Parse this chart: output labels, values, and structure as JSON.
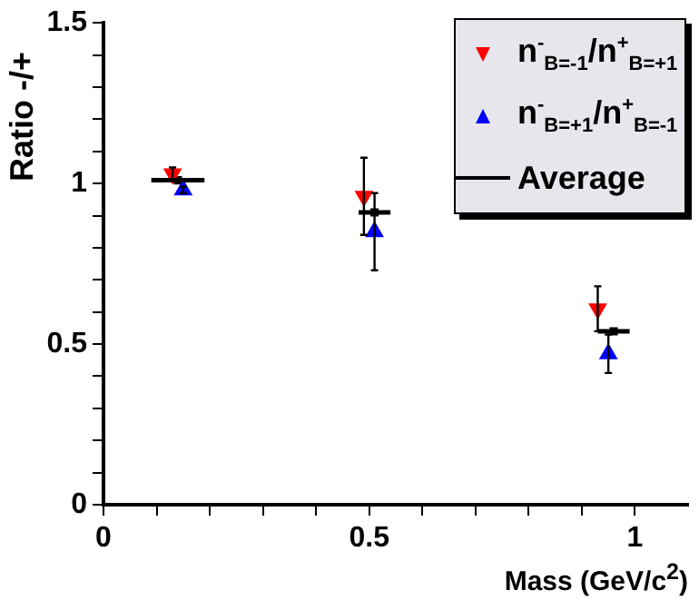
{
  "chart_data": {
    "type": "scatter",
    "xlabel": "Mass (GeV/c$^{2}$)",
    "ylabel": "Ratio -/+",
    "xlim": [
      0,
      1.1
    ],
    "ylim": [
      0,
      1.5
    ],
    "xticks": [
      0,
      {
        "value": 0.1,
        "label": null
      },
      {
        "value": 0.2,
        "label": null
      },
      {
        "value": 0.3,
        "label": null
      },
      {
        "value": 0.4,
        "label": null
      },
      0.5,
      {
        "value": 0.6,
        "label": null
      },
      {
        "value": 0.7,
        "label": null
      },
      {
        "value": 0.8,
        "label": null
      },
      {
        "value": 0.9,
        "label": null
      },
      1
    ],
    "yticks": [
      0,
      {
        "value": 0.1,
        "label": null
      },
      {
        "value": 0.2,
        "label": null
      },
      {
        "value": 0.3,
        "label": null
      },
      {
        "value": 0.4,
        "label": null
      },
      0.5,
      {
        "value": 0.6,
        "label": null
      },
      {
        "value": 0.7,
        "label": null
      },
      {
        "value": 0.8,
        "label": null
      },
      {
        "value": 0.9,
        "label": null
      },
      1,
      {
        "value": 1.1,
        "label": null
      },
      {
        "value": 1.2,
        "label": null
      },
      {
        "value": 1.3,
        "label": null
      },
      {
        "value": 1.4,
        "label": null
      },
      1.5
    ],
    "grid": false,
    "legend": "top right",
    "series": [
      {
        "name": "n$^{-}$$_{B=-1}$/n$^{+}$$_{B=+1}$",
        "color": "#ff0000",
        "marker": "triangle",
        "x": [
          0.13,
          0.49,
          0.93
        ],
        "values": [
          1.03,
          0.96,
          0.61
        ],
        "errors": [
          0.02,
          0.12,
          0.07
        ]
      },
      {
        "name": "n$^{-}$$_{B=+1}$/n$^{+}$$_{B=-1}$",
        "color": "#0000ff",
        "marker": "triangle",
        "x": [
          0.15,
          0.51,
          0.95
        ],
        "values": [
          0.98,
          0.85,
          0.47
        ],
        "errors": [
          0.01,
          0.12,
          0.06
        ]
      },
      {
        "name": "Average",
        "color": "#000000",
        "marker": "square",
        "x": [
          0.14,
          0.51,
          0.96
        ],
        "values": [
          1.01,
          0.91,
          0.54
        ],
        "xerrors": [
          0.05,
          0.03,
          0.03
        ]
      }
    ]
  }
}
